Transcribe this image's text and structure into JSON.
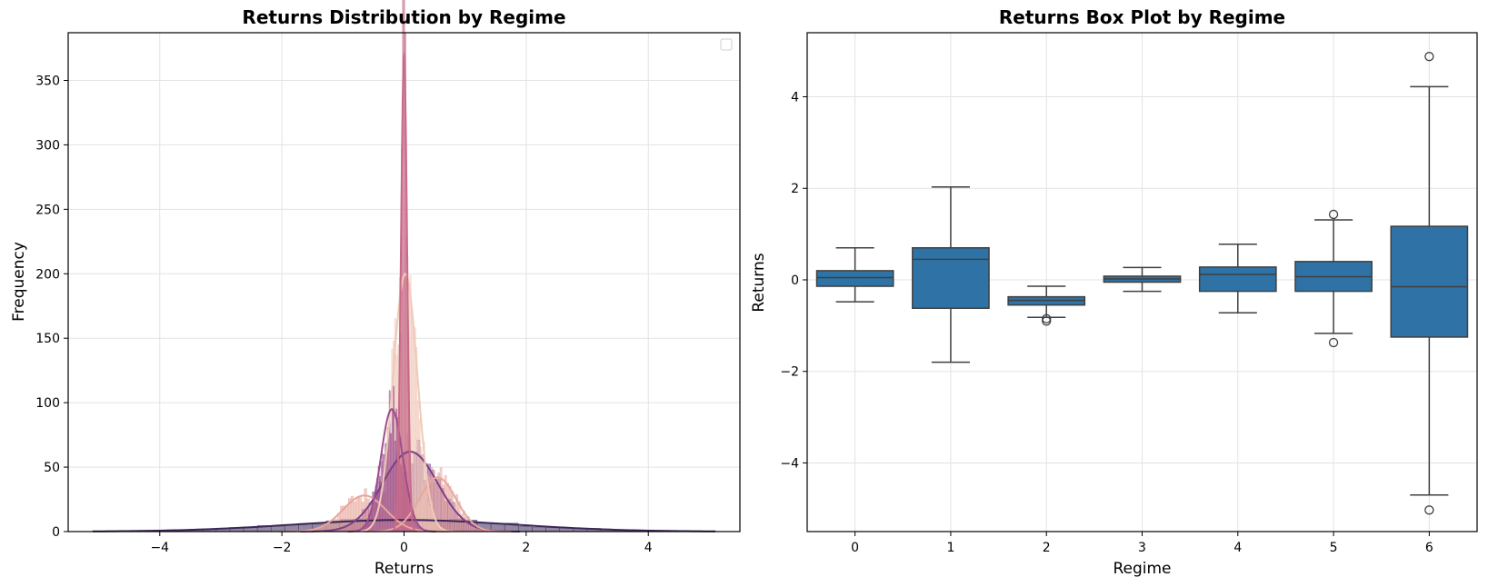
{
  "chart_data": [
    {
      "type": "histogram-kde",
      "title": "Returns Distribution by Regime",
      "xlabel": "Returns",
      "ylabel": "Frequency",
      "xlim": [
        -5.5,
        5.5
      ],
      "ylim": [
        0,
        387
      ],
      "xticks": [
        -4,
        -2,
        0,
        2,
        4
      ],
      "yticks": [
        0,
        50,
        100,
        150,
        200,
        250,
        300,
        350
      ],
      "grid": true,
      "legend": "top-right (empty)",
      "series": [
        {
          "regime": 0,
          "color": "#f0c9b8",
          "mean": 0.02,
          "std": 0.2,
          "peak": 200
        },
        {
          "regime": 1,
          "color": "#e8a59b",
          "mean": -0.65,
          "std": 0.35,
          "peak": 28
        },
        {
          "regime": 2,
          "color": "#c86a8a",
          "mean": 0.0,
          "std": 0.05,
          "peak": 370
        },
        {
          "regime": 3,
          "color": "#9c4f8c",
          "mean": -0.2,
          "std": 0.18,
          "peak": 95
        },
        {
          "regime": 4,
          "color": "#7d3f86",
          "mean": 0.1,
          "std": 0.45,
          "peak": 62
        },
        {
          "regime": 5,
          "color": "#e7a7a0",
          "mean": 0.55,
          "std": 0.3,
          "peak": 42
        },
        {
          "regime": 6,
          "color": "#3b2758",
          "mean": 0.0,
          "std": 1.8,
          "peak": 9
        }
      ]
    },
    {
      "type": "box",
      "title": "Returns Box Plot by Regime",
      "xlabel": "Regime",
      "ylabel": "Returns",
      "ylim": [
        -5.5,
        5.4
      ],
      "yticks": [
        -4,
        -2,
        0,
        2,
        4
      ],
      "categories": [
        "0",
        "1",
        "2",
        "3",
        "4",
        "5",
        "6"
      ],
      "color": "#2f73a6",
      "grid": true,
      "boxes": [
        {
          "regime": "0",
          "whislo": -0.48,
          "q1": -0.14,
          "med": 0.05,
          "q3": 0.2,
          "whishi": 0.7,
          "fliers": []
        },
        {
          "regime": "1",
          "whislo": -1.8,
          "q1": -0.62,
          "med": 0.45,
          "q3": 0.7,
          "whishi": 2.03,
          "fliers": []
        },
        {
          "regime": "2",
          "whislo": -0.82,
          "q1": -0.55,
          "med": -0.45,
          "q3": -0.37,
          "whishi": -0.14,
          "fliers": [
            -0.85,
            -0.9
          ]
        },
        {
          "regime": "3",
          "whislo": -0.25,
          "q1": -0.05,
          "med": 0.02,
          "q3": 0.08,
          "whishi": 0.27,
          "fliers": []
        },
        {
          "regime": "4",
          "whislo": -0.72,
          "q1": -0.25,
          "med": 0.12,
          "q3": 0.28,
          "whishi": 0.78,
          "fliers": []
        },
        {
          "regime": "5",
          "whislo": -1.17,
          "q1": -0.25,
          "med": 0.07,
          "q3": 0.4,
          "whishi": 1.31,
          "fliers": [
            1.43,
            -1.37
          ]
        },
        {
          "regime": "6",
          "whislo": -4.7,
          "q1": -1.25,
          "med": -0.15,
          "q3": 1.17,
          "whishi": 4.22,
          "fliers": [
            4.88,
            -5.03
          ]
        }
      ]
    }
  ]
}
